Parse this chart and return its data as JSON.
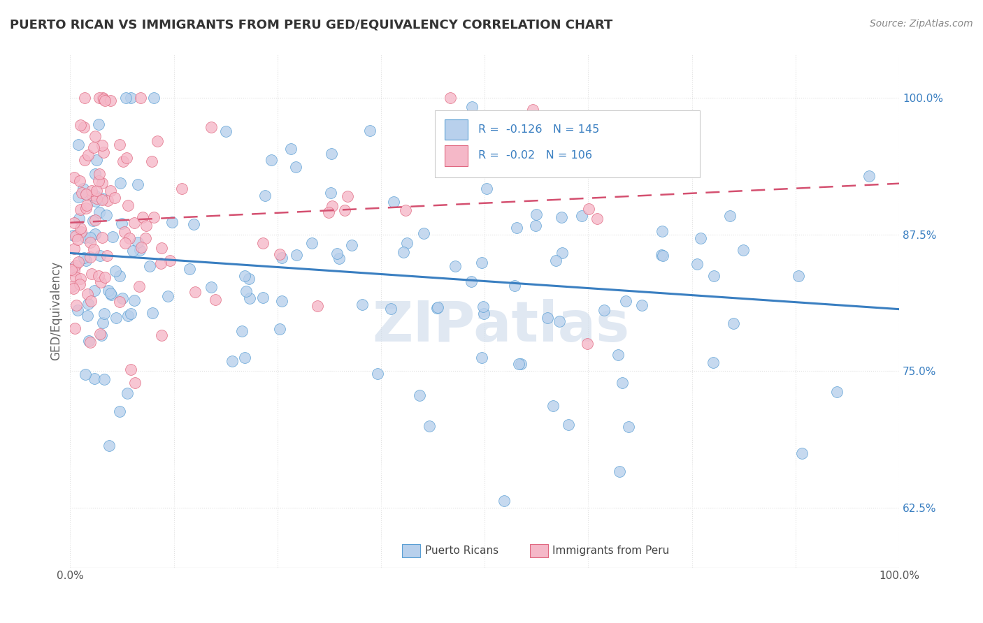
{
  "title": "PUERTO RICAN VS IMMIGRANTS FROM PERU GED/EQUIVALENCY CORRELATION CHART",
  "source_text": "Source: ZipAtlas.com",
  "ylabel": "GED/Equivalency",
  "legend_label_blue": "Puerto Ricans",
  "legend_label_pink": "Immigrants from Peru",
  "R_blue": -0.126,
  "N_blue": 145,
  "R_pink": -0.02,
  "N_pink": 106,
  "xlim": [
    0.0,
    1.0
  ],
  "ylim": [
    0.57,
    1.04
  ],
  "xtick_labels": [
    "0.0%",
    "100.0%"
  ],
  "ytick_labels": [
    "62.5%",
    "75.0%",
    "87.5%",
    "100.0%"
  ],
  "ytick_values": [
    0.625,
    0.75,
    0.875,
    1.0
  ],
  "background_color": "#ffffff",
  "grid_color": "#e0e0e0",
  "title_color": "#333333",
  "blue_color": "#b8d0ec",
  "pink_color": "#f5b8c8",
  "blue_edge_color": "#5a9fd4",
  "pink_edge_color": "#e06880",
  "blue_line_color": "#3a7fc1",
  "pink_line_color": "#d45070",
  "watermark_color": "#ccdaea",
  "seed_blue": 42,
  "seed_pink": 123
}
